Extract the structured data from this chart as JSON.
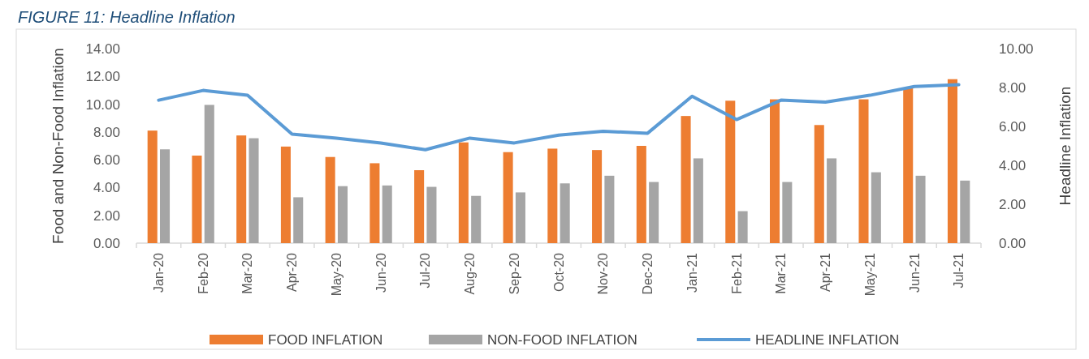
{
  "chart_data": {
    "type": "bar",
    "title": "FIGURE 11: Headline Inflation",
    "categories": [
      "Jan-20",
      "Feb-20",
      "Mar-20",
      "Apr-20",
      "May-20",
      "Jun-20",
      "Jul-20",
      "Aug-20",
      "Sep-20",
      "Oct-20",
      "Nov-20",
      "Dec-20",
      "Jan-21",
      "Feb-21",
      "Mar-21",
      "Apr-21",
      "May-21",
      "Jun-21",
      "Jul-21"
    ],
    "series": [
      {
        "name": "FOOD INFLATION",
        "color": "#ed7d31",
        "values": [
          8.1,
          6.3,
          7.75,
          6.95,
          6.2,
          5.75,
          5.25,
          7.25,
          6.55,
          6.8,
          6.7,
          7.0,
          9.15,
          10.25,
          10.35,
          8.5,
          10.35,
          11.2,
          11.8
        ]
      },
      {
        "name": "NON-FOOD INFLATION",
        "color": "#a5a5a5",
        "values": [
          6.75,
          9.95,
          7.55,
          3.3,
          4.1,
          4.15,
          4.05,
          3.4,
          3.65,
          4.3,
          4.85,
          4.4,
          6.1,
          2.3,
          4.4,
          6.1,
          5.1,
          4.85,
          4.5
        ]
      },
      {
        "name": "HEADLINE INFLATION",
        "type": "line",
        "axis": "y2",
        "color": "#5b9bd5",
        "values": [
          7.35,
          7.85,
          7.6,
          5.6,
          5.4,
          5.15,
          4.8,
          5.4,
          5.15,
          5.55,
          5.75,
          5.65,
          7.55,
          6.35,
          7.35,
          7.25,
          7.6,
          8.05,
          8.15
        ]
      }
    ],
    "ylabel": "Food and Non-Food Inflation",
    "y2label": "Headline Inflation",
    "ylim": [
      0,
      14
    ],
    "yticks": [
      {
        "value": 0,
        "label": "0.00"
      },
      {
        "value": 2,
        "label": "2.00"
      },
      {
        "value": 4,
        "label": "4.00"
      },
      {
        "value": 6,
        "label": "6.00"
      },
      {
        "value": 8,
        "label": "8.00"
      },
      {
        "value": 10,
        "label": "10.00"
      },
      {
        "value": 12,
        "label": "12.00"
      },
      {
        "value": 14,
        "label": "14.00"
      }
    ],
    "y2lim": [
      0,
      10
    ],
    "y2ticks": [
      {
        "value": 0,
        "label": "0.00"
      },
      {
        "value": 2,
        "label": "2.00"
      },
      {
        "value": 4,
        "label": "4.00"
      },
      {
        "value": 6,
        "label": "6.00"
      },
      {
        "value": 8,
        "label": "8.00"
      },
      {
        "value": 10,
        "label": "10.00"
      }
    ],
    "legend": "bottom",
    "line_style": "solid",
    "marker": "none"
  }
}
